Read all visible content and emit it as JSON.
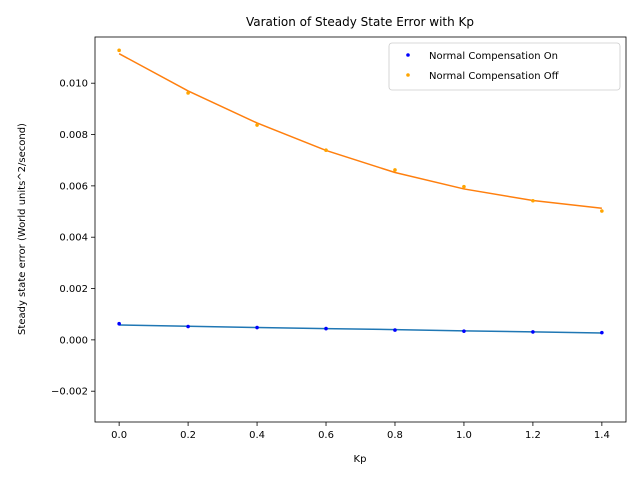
{
  "chart_data": {
    "type": "scatter",
    "title": "Varation of Steady State Error with Kp",
    "xlabel": "Kp",
    "ylabel": "Steady state error (World units^2/second)",
    "xlim": [
      -0.07,
      1.47
    ],
    "ylim": [
      -0.0032,
      0.0118
    ],
    "x_ticks": [
      0.0,
      0.2,
      0.4,
      0.6,
      0.8,
      1.0,
      1.2,
      1.4
    ],
    "x_tick_labels": [
      "0.0",
      "0.2",
      "0.4",
      "0.6",
      "0.8",
      "1.0",
      "1.2",
      "1.4"
    ],
    "y_ticks": [
      -0.002,
      0.0,
      0.002,
      0.004,
      0.006,
      0.008,
      0.01
    ],
    "y_tick_labels": [
      "−0.002",
      "0.000",
      "0.002",
      "0.004",
      "0.006",
      "0.008",
      "0.010"
    ],
    "grid": false,
    "legend_position": "top-right",
    "series": [
      {
        "name": "Normal Compensation On",
        "marker_color": "#0000ff",
        "fit_color": "#1f77b4",
        "x": [
          0.0,
          0.2,
          0.4,
          0.6,
          0.8,
          1.0,
          1.2,
          1.4
        ],
        "y": [
          0.00063,
          0.00052,
          0.00048,
          0.00044,
          0.00038,
          0.00034,
          0.00031,
          0.00028
        ],
        "fit": [
          0.00058,
          0.00053,
          0.00048,
          0.00044,
          0.0004,
          0.00035,
          0.00031,
          0.00027
        ]
      },
      {
        "name": "Normal Compensation Off",
        "marker_color": "#ffa500",
        "fit_color": "#ff7f0e",
        "x": [
          0.0,
          0.2,
          0.4,
          0.6,
          0.8,
          1.0,
          1.2,
          1.4
        ],
        "y": [
          0.01128,
          0.00962,
          0.00837,
          0.00739,
          0.00662,
          0.00597,
          0.00542,
          0.00502
        ],
        "fit": [
          0.01115,
          0.0097,
          0.00845,
          0.00738,
          0.00652,
          0.00588,
          0.00543,
          0.00513
        ]
      }
    ]
  }
}
